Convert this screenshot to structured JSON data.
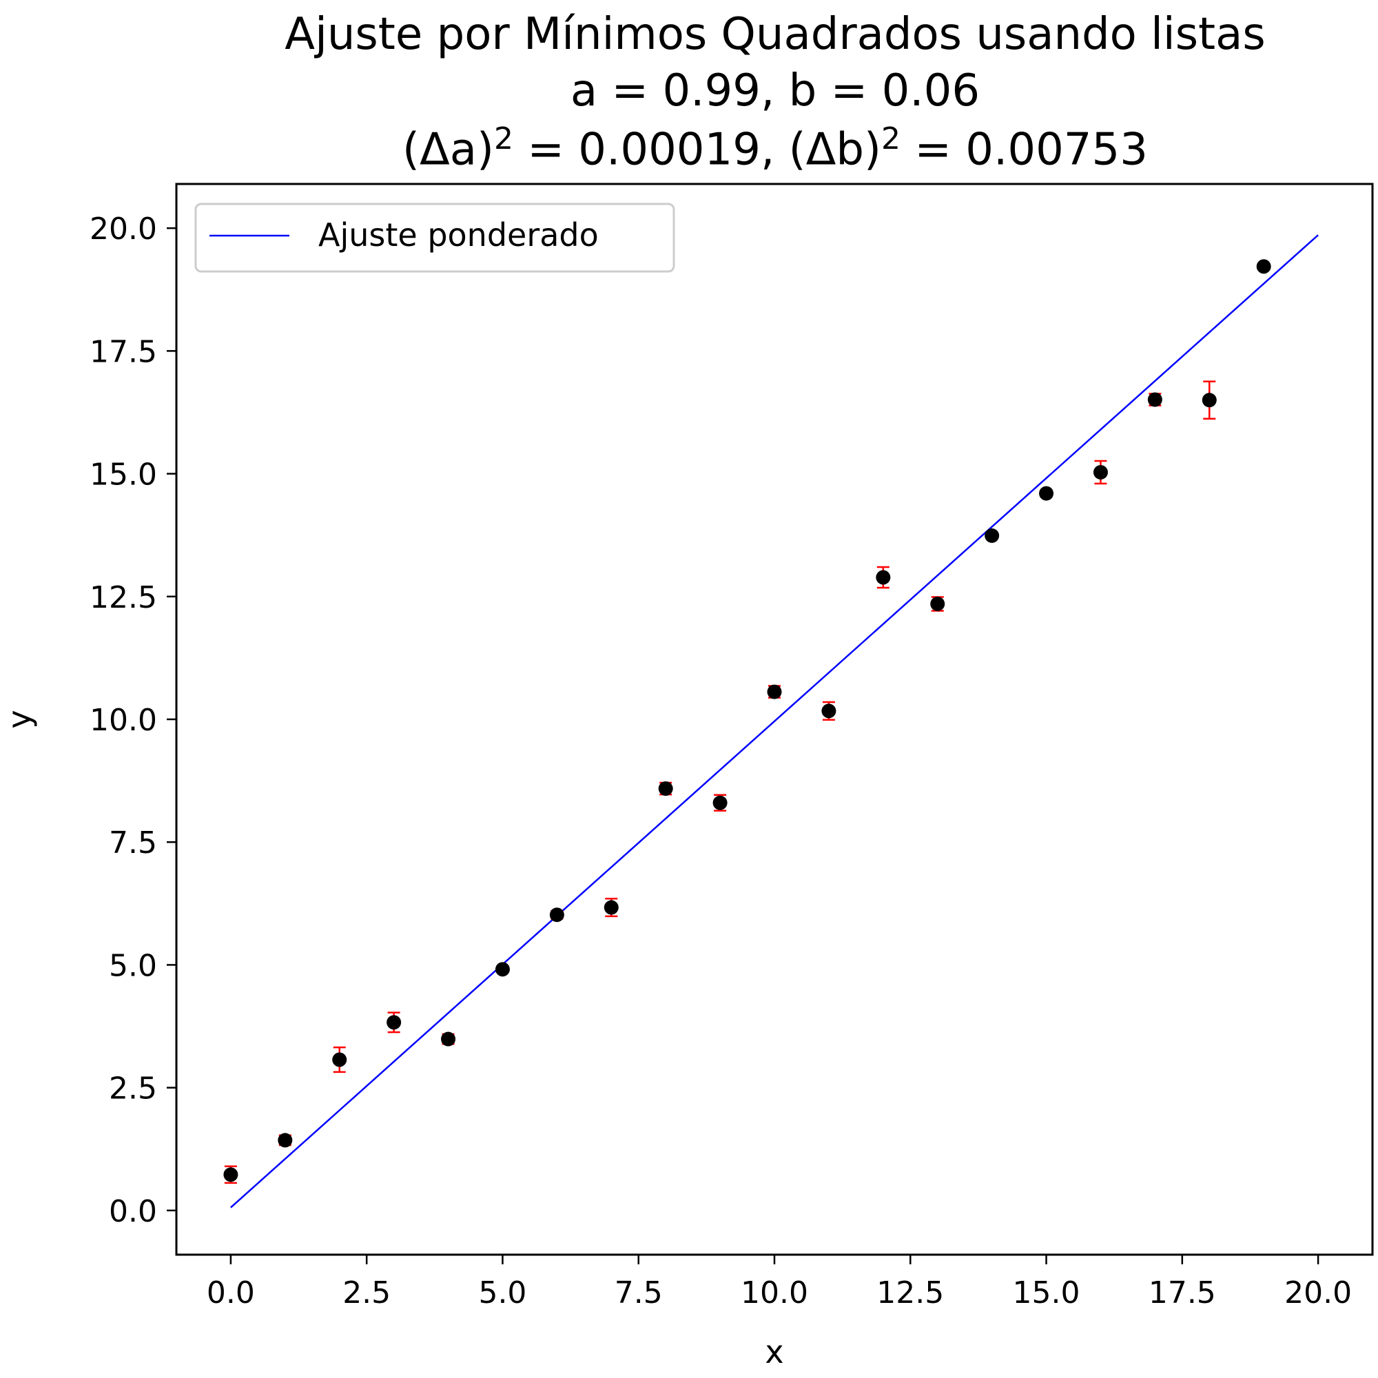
{
  "chart_data": {
    "type": "scatter",
    "title": "Ajuste por Mínimos Quadrados usando listas",
    "subtitle_params": "a = 0.99, b = 0.06",
    "subtitle_variances": {
      "delta_a_label": "(Δa)",
      "delta_a_value": "0.00019",
      "delta_b_label": "(Δb)",
      "delta_b_value": "0.00753",
      "exponent": "2"
    },
    "xlabel": "x",
    "ylabel": "y",
    "xlim": [
      -1.0,
      21.0
    ],
    "ylim": [
      -0.9,
      20.9
    ],
    "x_ticks": [
      0.0,
      2.5,
      5.0,
      7.5,
      10.0,
      12.5,
      15.0,
      17.5,
      20.0
    ],
    "x_tick_labels": [
      "0.0",
      "2.5",
      "5.0",
      "7.5",
      "10.0",
      "12.5",
      "15.0",
      "17.5",
      "20.0"
    ],
    "y_ticks": [
      0.0,
      2.5,
      5.0,
      7.5,
      10.0,
      12.5,
      15.0,
      17.5,
      20.0
    ],
    "y_tick_labels": [
      "0.0",
      "2.5",
      "5.0",
      "7.5",
      "10.0",
      "12.5",
      "15.0",
      "17.5",
      "20.0"
    ],
    "grid": false,
    "legend": {
      "position": "top-left",
      "entries": [
        "Ajuste ponderado"
      ]
    },
    "fit_line": {
      "name": "Ajuste ponderado",
      "a": 0.99,
      "b": 0.06,
      "x_start": 0,
      "x_end": 20,
      "color": "#0000ff"
    },
    "points": {
      "x": [
        0,
        1,
        2,
        3,
        4,
        5,
        6,
        7,
        8,
        9,
        10,
        11,
        12,
        13,
        14,
        15,
        16,
        17,
        18,
        19
      ],
      "y": [
        0.73,
        1.43,
        3.07,
        3.83,
        3.49,
        4.91,
        6.02,
        6.17,
        8.59,
        8.3,
        10.56,
        10.17,
        12.89,
        12.35,
        13.74,
        14.6,
        15.03,
        16.51,
        16.5,
        19.22
      ],
      "yerr": [
        0.17,
        0.1,
        0.25,
        0.2,
        0.1,
        0.06,
        0.08,
        0.18,
        0.12,
        0.16,
        0.12,
        0.18,
        0.21,
        0.14,
        0.06,
        0.07,
        0.23,
        0.12,
        0.38,
        0.06
      ],
      "marker_color": "#000000",
      "errorbar_color": "#ff0000"
    }
  }
}
